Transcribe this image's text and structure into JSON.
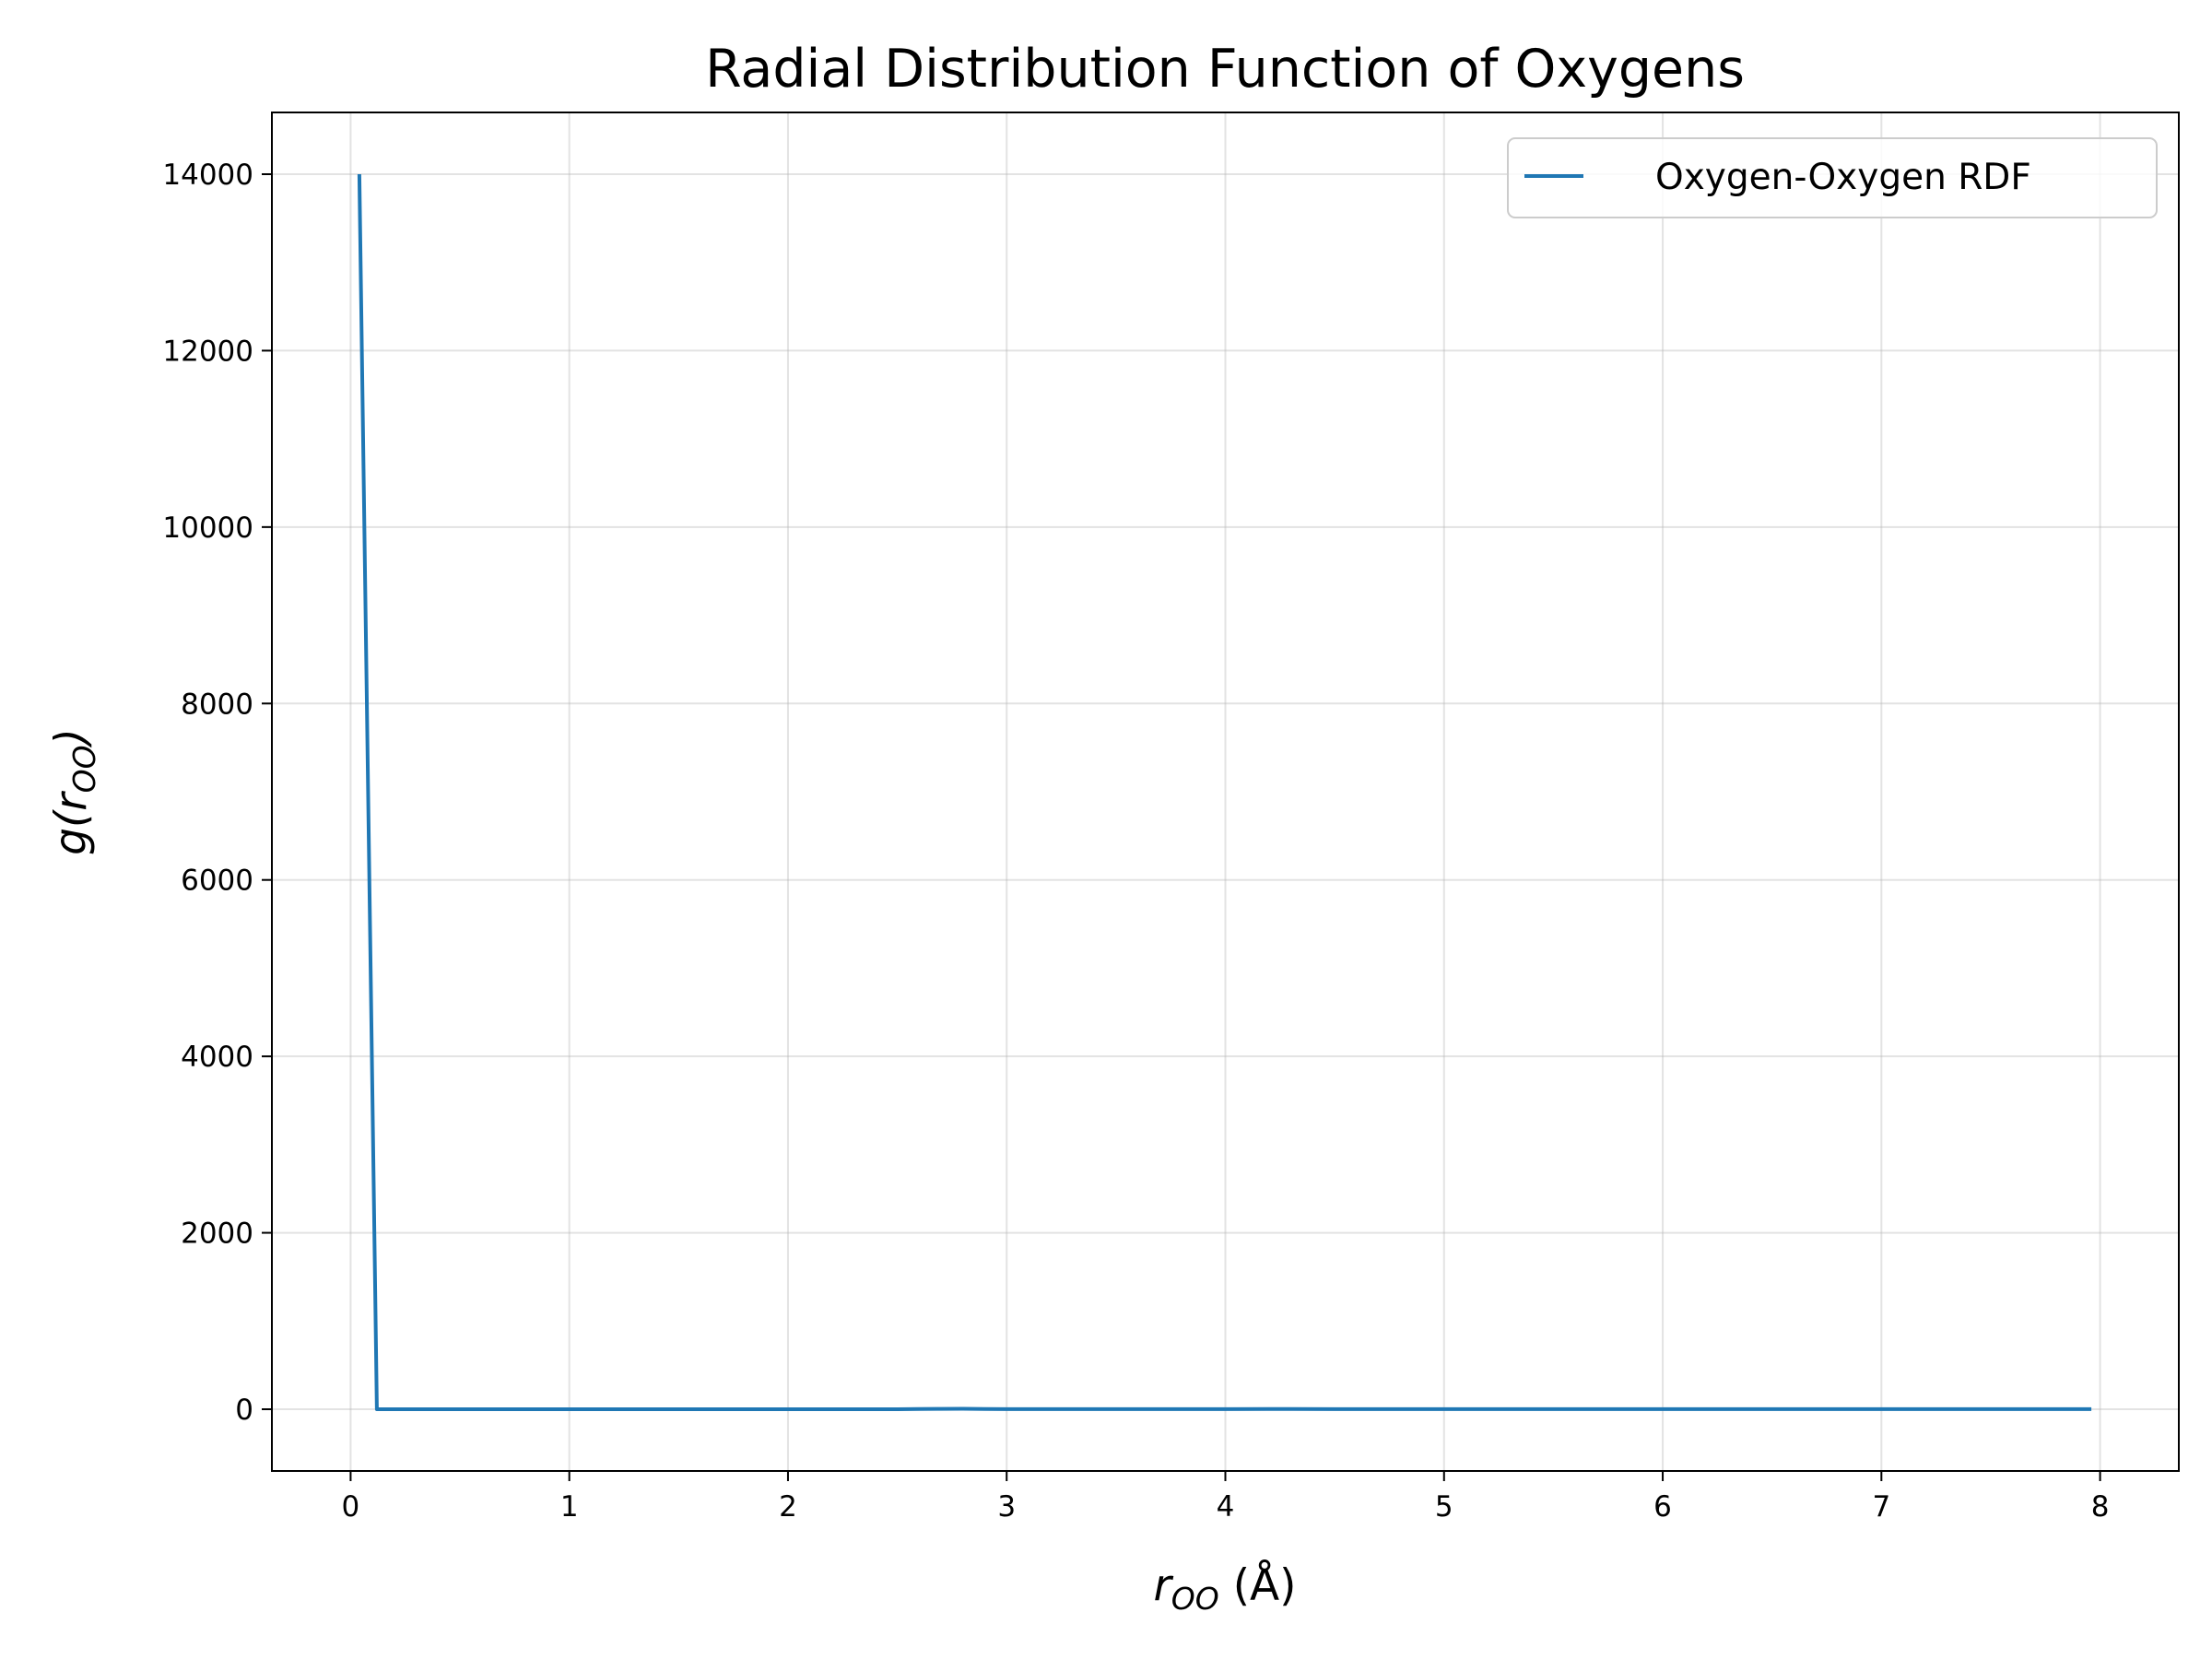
{
  "chart_data": {
    "type": "line",
    "title": "Radial Distribution Function of Oxygens",
    "xlabel": {
      "main": "r",
      "sub": "OO",
      "unit": " (Å)"
    },
    "ylabel": {
      "prefix": "g(",
      "main": "r",
      "sub": "OO",
      "suffix": ")"
    },
    "xlim": [
      -0.36,
      8.36
    ],
    "ylim": [
      -700,
      14700
    ],
    "x_ticks": [
      0,
      1,
      2,
      3,
      4,
      5,
      6,
      7,
      8
    ],
    "y_ticks": [
      0,
      2000,
      4000,
      6000,
      8000,
      10000,
      12000,
      14000
    ],
    "grid": true,
    "legend": {
      "position": "top-right"
    },
    "series": [
      {
        "name": "Oxygen-Oxygen RDF",
        "color": "#1f77b4",
        "x": [
          0.04,
          0.12,
          0.5,
          1.0,
          1.5,
          2.0,
          2.5,
          2.6,
          2.7,
          2.8,
          2.9,
          3.0,
          3.5,
          4.0,
          4.2,
          4.3,
          4.5,
          5.0,
          5.5,
          6.0,
          6.5,
          7.0,
          7.5,
          7.96
        ],
        "y": [
          14000,
          0,
          0,
          0,
          0,
          0,
          0,
          2,
          4,
          5,
          3,
          1,
          1,
          1,
          2,
          2,
          1,
          1,
          1,
          1,
          1,
          1,
          1,
          1
        ]
      }
    ]
  }
}
